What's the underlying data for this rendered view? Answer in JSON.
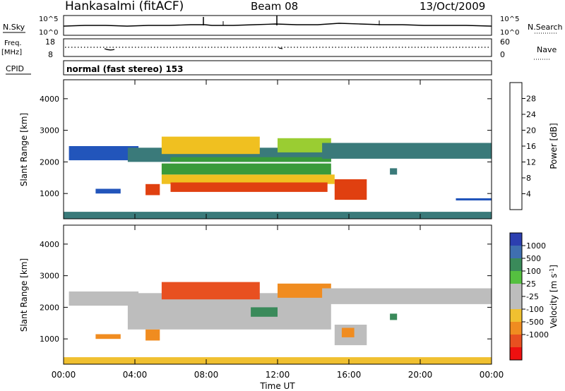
{
  "header": {
    "station": "Hankasalmi (fitACF)",
    "beam": "Beam 08",
    "date": "13/Oct/2009"
  },
  "noise_panel": {
    "left_label": "N.Sky",
    "right_label": "N.Search",
    "left_ticks": [
      "10^5",
      "10^0"
    ],
    "right_ticks": [
      "10^5",
      "10^0"
    ]
  },
  "freq_panel": {
    "label_line1": "Freq.",
    "label_line2": "[MHz]",
    "left_ticks": [
      "18",
      "8"
    ],
    "right_ticks": [
      "60",
      "0"
    ],
    "right_label": "Nave"
  },
  "cpid_panel": {
    "label": "CPID",
    "text": "normal (fast stereo) 153"
  },
  "x_axis": {
    "label": "Time UT",
    "ticks": [
      "00:00",
      "04:00",
      "08:00",
      "12:00",
      "16:00",
      "20:00",
      "00:00"
    ]
  },
  "colors": {
    "power_scale": [
      "#0000ee",
      "#2255bb",
      "#3a7a7a",
      "#3a9a3a",
      "#9acd32",
      "#f0c020",
      "#f08020",
      "#e04010",
      "#ee0000"
    ],
    "velocity_scale": [
      "#2c3fb0",
      "#3f6fb0",
      "#3a8a5a",
      "#55c040",
      "#bdbdbd",
      "#bdbdbd",
      "#f0c030",
      "#f08c20",
      "#e85020",
      "#ee1010"
    ]
  },
  "chart_data": [
    {
      "type": "heatmap",
      "title": "",
      "xlabel": "Time UT",
      "ylabel": "Slant Range [km]",
      "colorbar_label": "Power [dB]",
      "y_ticks": [
        "1000",
        "2000",
        "3000",
        "4000"
      ],
      "ylim": [
        200,
        4600
      ],
      "xlim_hours": [
        0,
        24
      ],
      "colorbar_ticks": [
        "4",
        "8",
        "12",
        "16",
        "20",
        "24",
        "28"
      ],
      "colorbar_range": [
        0,
        32
      ],
      "regions": [
        {
          "t_start": 0.0,
          "t_end": 24.0,
          "r_min": 200,
          "r_max": 420,
          "value": 8
        },
        {
          "t_start": 0.3,
          "t_end": 4.2,
          "r_min": 2050,
          "r_max": 2500,
          "value": 7
        },
        {
          "t_start": 1.8,
          "t_end": 3.2,
          "r_min": 1000,
          "r_max": 1150,
          "value": 6
        },
        {
          "t_start": 3.6,
          "t_end": 15.0,
          "r_min": 2000,
          "r_max": 2450,
          "value": 9
        },
        {
          "t_start": 4.6,
          "t_end": 5.4,
          "r_min": 950,
          "r_max": 1300,
          "value": 26
        },
        {
          "t_start": 5.5,
          "t_end": 15.2,
          "r_min": 1300,
          "r_max": 1600,
          "value": 20
        },
        {
          "t_start": 6.0,
          "t_end": 14.8,
          "r_min": 1050,
          "r_max": 1350,
          "value": 28
        },
        {
          "t_start": 5.5,
          "t_end": 15.0,
          "r_min": 1600,
          "r_max": 1950,
          "value": 14
        },
        {
          "t_start": 6.0,
          "t_end": 15.0,
          "r_min": 2000,
          "r_max": 2150,
          "value": 12
        },
        {
          "t_start": 5.5,
          "t_end": 11.0,
          "r_min": 2250,
          "r_max": 2800,
          "value": 18
        },
        {
          "t_start": 12.0,
          "t_end": 15.0,
          "r_min": 2300,
          "r_max": 2750,
          "value": 16
        },
        {
          "t_start": 15.2,
          "t_end": 17.0,
          "r_min": 800,
          "r_max": 1450,
          "value": 28
        },
        {
          "t_start": 14.5,
          "t_end": 24.0,
          "r_min": 2100,
          "r_max": 2600,
          "value": 9
        },
        {
          "t_start": 18.3,
          "t_end": 18.7,
          "r_min": 1600,
          "r_max": 1800,
          "value": 10
        },
        {
          "t_start": 22.0,
          "t_end": 24.0,
          "r_min": 780,
          "r_max": 850,
          "value": 6
        }
      ]
    },
    {
      "type": "heatmap",
      "title": "",
      "xlabel": "Time UT",
      "ylabel": "Slant Range [km]",
      "colorbar_label": "Velocity [m s^-1]",
      "y_ticks": [
        "1000",
        "2000",
        "3000",
        "4000"
      ],
      "ylim": [
        200,
        4600
      ],
      "xlim_hours": [
        0,
        24
      ],
      "colorbar_ticks": [
        "1000",
        "500",
        "100",
        "25",
        "-25",
        "-100",
        "-500",
        "-1000"
      ],
      "colorbar_range": [
        -1200,
        1200
      ],
      "regions": [
        {
          "t_start": 0.0,
          "t_end": 24.0,
          "r_min": 200,
          "r_max": 420,
          "value": -60
        },
        {
          "t_start": 0.3,
          "t_end": 4.2,
          "r_min": 2050,
          "r_max": 2500,
          "value": 0
        },
        {
          "t_start": 1.8,
          "t_end": 3.2,
          "r_min": 1000,
          "r_max": 1150,
          "value": -200
        },
        {
          "t_start": 3.6,
          "t_end": 15.0,
          "r_min": 1300,
          "r_max": 2450,
          "value": 0
        },
        {
          "t_start": 4.6,
          "t_end": 5.4,
          "r_min": 950,
          "r_max": 1300,
          "value": -200
        },
        {
          "t_start": 5.5,
          "t_end": 11.0,
          "r_min": 2250,
          "r_max": 2800,
          "value": -400
        },
        {
          "t_start": 10.5,
          "t_end": 12.0,
          "r_min": 1700,
          "r_max": 2000,
          "value": 150
        },
        {
          "t_start": 12.0,
          "t_end": 15.0,
          "r_min": 2300,
          "r_max": 2750,
          "value": -150
        },
        {
          "t_start": 15.2,
          "t_end": 17.0,
          "r_min": 800,
          "r_max": 1450,
          "value": 0
        },
        {
          "t_start": 15.6,
          "t_end": 16.3,
          "r_min": 1050,
          "r_max": 1350,
          "value": -300
        },
        {
          "t_start": 14.5,
          "t_end": 24.0,
          "r_min": 2100,
          "r_max": 2600,
          "value": 0
        },
        {
          "t_start": 18.3,
          "t_end": 18.7,
          "r_min": 1600,
          "r_max": 1800,
          "value": 250
        }
      ]
    }
  ]
}
